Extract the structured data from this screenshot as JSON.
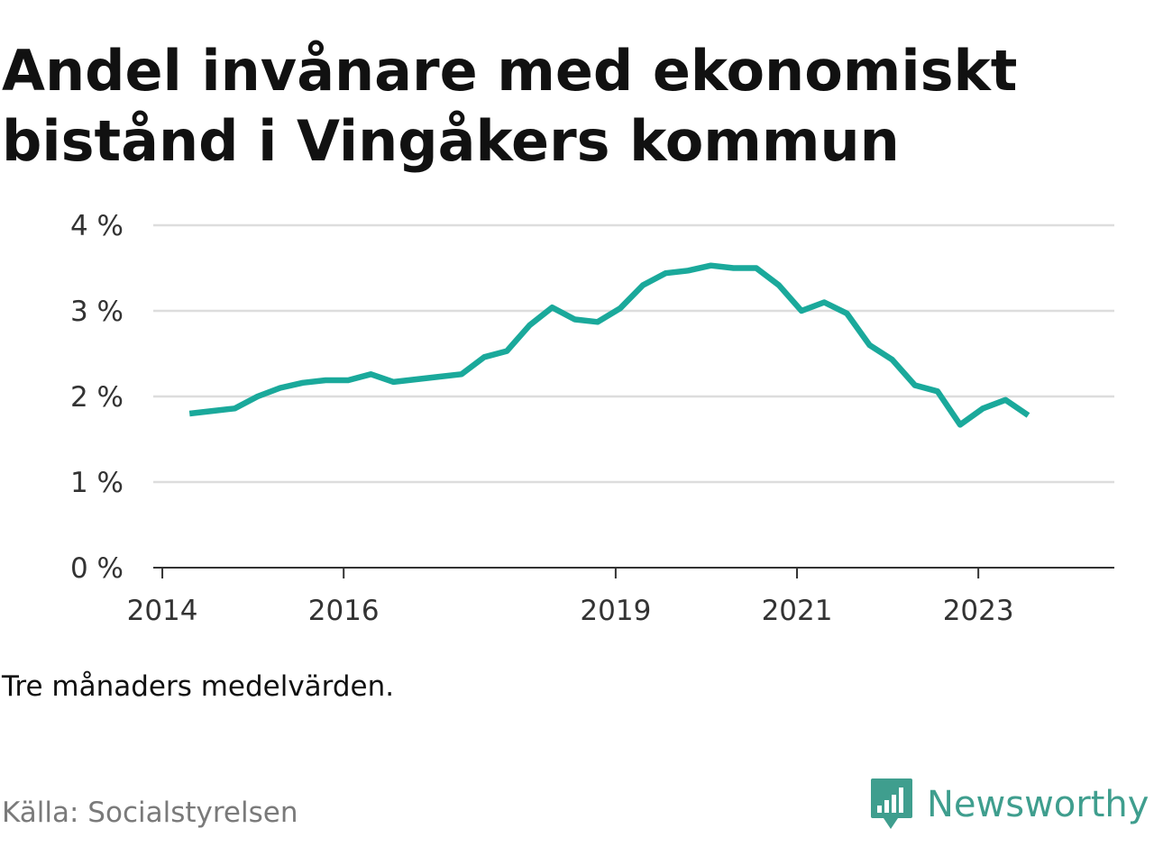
{
  "title": "Andel invånare med ekonomiskt bistånd i Vingåkers kommun",
  "subtitle": "Tre månaders medelvärden.",
  "source": "Källa: Socialstyrelsen",
  "brand": {
    "name": "Newsworthy",
    "icon": "newsworthy-logo-icon",
    "color": "#3f9e8e"
  },
  "chart_data": {
    "type": "line",
    "line_color": "#1aa99b",
    "grid": true,
    "ylim": [
      0,
      4
    ],
    "xlim": [
      2013.9,
      2024.5
    ],
    "y_ticks": [
      {
        "value": 0,
        "label": "0 %"
      },
      {
        "value": 1,
        "label": "1 %"
      },
      {
        "value": 2,
        "label": "2 %"
      },
      {
        "value": 3,
        "label": "3 %"
      },
      {
        "value": 4,
        "label": "4 %"
      }
    ],
    "x_ticks": [
      {
        "value": 2014,
        "label": "2014"
      },
      {
        "value": 2016,
        "label": "2016"
      },
      {
        "value": 2019,
        "label": "2019"
      },
      {
        "value": 2021,
        "label": "2021"
      },
      {
        "value": 2023,
        "label": "2023"
      }
    ],
    "x": [
      2014.3,
      2014.55,
      2014.8,
      2015.05,
      2015.3,
      2015.55,
      2015.8,
      2016.05,
      2016.3,
      2016.55,
      2016.8,
      2017.05,
      2017.3,
      2017.55,
      2017.8,
      2018.05,
      2018.3,
      2018.55,
      2018.8,
      2019.05,
      2019.3,
      2019.55,
      2019.8,
      2020.05,
      2020.3,
      2020.55,
      2020.8,
      2021.05,
      2021.3,
      2021.55,
      2021.8,
      2022.05,
      2022.3,
      2022.55,
      2022.8,
      2023.05,
      2023.3,
      2023.55
    ],
    "y": [
      1.8,
      1.83,
      1.86,
      2.0,
      2.1,
      2.16,
      2.19,
      2.19,
      2.26,
      2.17,
      2.2,
      2.23,
      2.26,
      2.46,
      2.53,
      2.83,
      3.04,
      2.9,
      2.87,
      3.03,
      3.3,
      3.44,
      3.47,
      3.53,
      3.5,
      3.5,
      3.3,
      3.0,
      3.1,
      2.97,
      2.6,
      2.43,
      2.13,
      2.06,
      1.67,
      1.86,
      1.96,
      1.78
    ]
  }
}
